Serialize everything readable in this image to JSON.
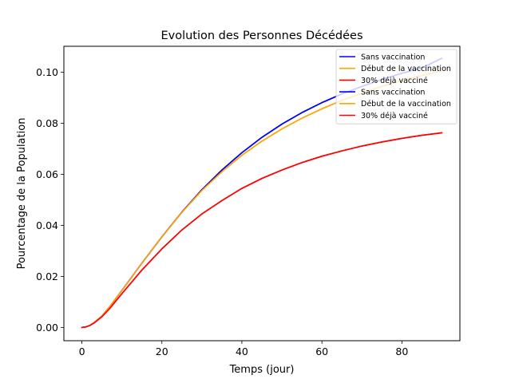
{
  "chart_data": {
    "type": "line",
    "title": "Evolution des Personnes Décédées",
    "xlabel": "Temps (jour)",
    "ylabel": "Pourcentage de la Population",
    "xlim": [
      -4.5,
      94.5
    ],
    "ylim": [
      -0.0052,
      0.1102
    ],
    "xticks": [
      0,
      20,
      40,
      60,
      80
    ],
    "xtick_labels": [
      "0",
      "20",
      "40",
      "60",
      "80"
    ],
    "yticks": [
      0,
      0.02,
      0.04,
      0.06,
      0.08,
      0.1
    ],
    "ytick_labels": [
      "0.00",
      "0.02",
      "0.04",
      "0.06",
      "0.08",
      "0.10"
    ],
    "grid": false,
    "legend_position": "top-right",
    "x": [
      0,
      1,
      2,
      3,
      5,
      7,
      10,
      15,
      20,
      25,
      30,
      35,
      40,
      45,
      50,
      55,
      60,
      65,
      70,
      75,
      80,
      85,
      90
    ],
    "series": [
      {
        "name": "Sans vaccination",
        "color": "#0000ff",
        "values": [
          0,
          0.0002,
          0.0008,
          0.0018,
          0.0045,
          0.0082,
          0.0145,
          0.0252,
          0.0355,
          0.0452,
          0.054,
          0.0617,
          0.0685,
          0.0745,
          0.0797,
          0.0842,
          0.0881,
          0.0915,
          0.0945,
          0.0972,
          0.0996,
          0.1017,
          0.1055
        ]
      },
      {
        "name": "Début de la vaccination",
        "color": "#ffa500",
        "values": [
          0,
          0.0002,
          0.0008,
          0.0018,
          0.0045,
          0.0082,
          0.0145,
          0.0252,
          0.0355,
          0.0451,
          0.0537,
          0.061,
          0.0675,
          0.073,
          0.0778,
          0.082,
          0.0857,
          0.089,
          0.0918,
          0.0945,
          0.0968,
          0.0988,
          0.1005
        ]
      },
      {
        "name": "30% déjà vacciné",
        "color": "#ff0000",
        "values": [
          0,
          0.0002,
          0.0008,
          0.0017,
          0.0042,
          0.0075,
          0.0132,
          0.0225,
          0.0308,
          0.0382,
          0.0445,
          0.0497,
          0.0545,
          0.0584,
          0.0617,
          0.0646,
          0.0671,
          0.0692,
          0.0711,
          0.0727,
          0.0741,
          0.0753,
          0.0763
        ]
      },
      {
        "name": "Sans vaccination",
        "color": "#0000ff",
        "values": [
          0,
          0.0002,
          0.0008,
          0.0018,
          0.0045,
          0.0082,
          0.0145,
          0.0252,
          0.0355,
          0.0452,
          0.054,
          0.0617,
          0.0685,
          0.0745,
          0.0797,
          0.0842,
          0.0881,
          0.0915,
          0.0945,
          0.0972,
          0.0996,
          0.1017,
          0.1055
        ]
      },
      {
        "name": "Début de la vaccination",
        "color": "#ffa500",
        "values": [
          0,
          0.0002,
          0.0008,
          0.0018,
          0.0045,
          0.0082,
          0.0145,
          0.0252,
          0.0355,
          0.0451,
          0.0537,
          0.061,
          0.0675,
          0.073,
          0.0778,
          0.082,
          0.0857,
          0.089,
          0.0918,
          0.0945,
          0.0968,
          0.0988,
          0.1005
        ]
      },
      {
        "name": "30% déjà vacciné",
        "color": "#ff0000",
        "values": [
          0,
          0.0002,
          0.0008,
          0.0017,
          0.0042,
          0.0075,
          0.0132,
          0.0225,
          0.0308,
          0.0382,
          0.0445,
          0.0497,
          0.0545,
          0.0584,
          0.0617,
          0.0646,
          0.0671,
          0.0692,
          0.0711,
          0.0727,
          0.0741,
          0.0753,
          0.0763
        ]
      }
    ]
  }
}
